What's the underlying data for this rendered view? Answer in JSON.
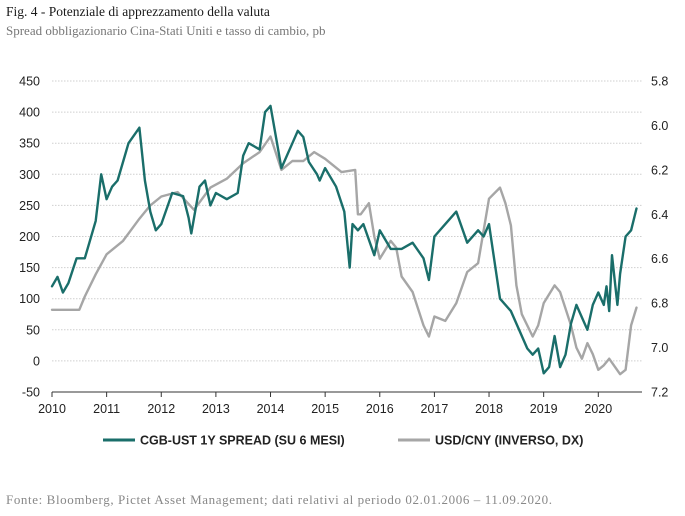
{
  "header": {
    "title": "Fig. 4 - Potenziale di apprezzamento della valuta",
    "subtitle": "Spread obbligazionario Cina-Stati Uniti e tasso di cambio, pb"
  },
  "footer": {
    "source": "Fonte: Bloomberg, Pictet Asset Management; dati relativi al periodo 02.01.2006 – 11.09.2020."
  },
  "colors": {
    "spread": "#1a6e6a",
    "fx": "#a6a6a6",
    "grid": "#cfcfcf"
  },
  "chart_data": {
    "type": "line",
    "xlim": [
      2010,
      2020.8
    ],
    "ylim": [
      -50,
      450
    ],
    "y2lim": [
      5.8,
      7.2
    ],
    "y2_inverted": true,
    "grid": true,
    "legend_position": "bottom",
    "x_ticks": [
      "2010",
      "2011",
      "2012",
      "2013",
      "2014",
      "2015",
      "2016",
      "2017",
      "2018",
      "2019",
      "2020"
    ],
    "y_ticks": [
      "450",
      "400",
      "350",
      "300",
      "250",
      "200",
      "150",
      "100",
      "50",
      "0",
      "-50"
    ],
    "y2_ticks": [
      "5.8",
      "6.0",
      "6.2",
      "6.4",
      "6.6",
      "6.8",
      "7.0",
      "7.2"
    ],
    "series": [
      {
        "name": "CGB-UST 1Y SPREAD (SU 6 MESI)",
        "axis": "left",
        "x": [
          2010.0,
          2010.1,
          2010.2,
          2010.3,
          2010.45,
          2010.6,
          2010.8,
          2010.9,
          2011.0,
          2011.1,
          2011.2,
          2011.4,
          2011.6,
          2011.7,
          2011.8,
          2011.9,
          2012.0,
          2012.2,
          2012.4,
          2012.5,
          2012.55,
          2012.7,
          2012.8,
          2012.9,
          2013.0,
          2013.2,
          2013.4,
          2013.5,
          2013.6,
          2013.8,
          2013.9,
          2014.0,
          2014.2,
          2014.4,
          2014.5,
          2014.6,
          2014.7,
          2014.85,
          2014.9,
          2015.0,
          2015.2,
          2015.35,
          2015.45,
          2015.5,
          2015.6,
          2015.7,
          2015.9,
          2016.0,
          2016.2,
          2016.4,
          2016.6,
          2016.8,
          2016.9,
          2017.0,
          2017.2,
          2017.4,
          2017.6,
          2017.8,
          2017.9,
          2018.0,
          2018.2,
          2018.4,
          2018.5,
          2018.7,
          2018.8,
          2018.9,
          2019.0,
          2019.1,
          2019.2,
          2019.3,
          2019.4,
          2019.5,
          2019.6,
          2019.7,
          2019.8,
          2019.9,
          2020.0,
          2020.1,
          2020.15,
          2020.2,
          2020.25,
          2020.35,
          2020.4,
          2020.5,
          2020.6,
          2020.7
        ],
        "values": [
          120,
          135,
          110,
          125,
          165,
          165,
          225,
          300,
          260,
          280,
          290,
          350,
          375,
          290,
          240,
          210,
          220,
          270,
          265,
          230,
          205,
          280,
          290,
          250,
          270,
          260,
          270,
          330,
          350,
          340,
          400,
          410,
          310,
          350,
          370,
          360,
          320,
          300,
          290,
          310,
          280,
          240,
          150,
          220,
          210,
          220,
          170,
          210,
          180,
          180,
          190,
          165,
          130,
          200,
          220,
          240,
          190,
          210,
          200,
          220,
          100,
          80,
          60,
          20,
          10,
          20,
          -20,
          -10,
          40,
          -10,
          10,
          60,
          90,
          70,
          50,
          90,
          110,
          90,
          120,
          80,
          170,
          90,
          140,
          200,
          210,
          245
        ]
      },
      {
        "name": "USD/CNY (INVERSO, DX)",
        "axis": "right",
        "x": [
          2010.0,
          2010.3,
          2010.5,
          2010.6,
          2010.8,
          2011.0,
          2011.3,
          2011.6,
          2011.8,
          2012.0,
          2012.3,
          2012.6,
          2012.9,
          2013.2,
          2013.5,
          2013.8,
          2014.0,
          2014.2,
          2014.4,
          2014.6,
          2014.8,
          2015.0,
          2015.3,
          2015.55,
          2015.6,
          2015.65,
          2015.8,
          2015.9,
          2016.0,
          2016.2,
          2016.3,
          2016.4,
          2016.6,
          2016.8,
          2016.9,
          2017.0,
          2017.2,
          2017.4,
          2017.6,
          2017.8,
          2018.0,
          2018.2,
          2018.3,
          2018.4,
          2018.5,
          2018.6,
          2018.8,
          2018.9,
          2019.0,
          2019.2,
          2019.3,
          2019.5,
          2019.6,
          2019.7,
          2019.8,
          2019.9,
          2020.0,
          2020.1,
          2020.2,
          2020.4,
          2020.5,
          2020.6,
          2020.7
        ],
        "values": [
          6.83,
          6.83,
          6.83,
          6.77,
          6.67,
          6.58,
          6.52,
          6.42,
          6.36,
          6.32,
          6.3,
          6.38,
          6.28,
          6.24,
          6.17,
          6.12,
          6.05,
          6.2,
          6.16,
          6.16,
          6.12,
          6.15,
          6.21,
          6.2,
          6.4,
          6.4,
          6.35,
          6.5,
          6.6,
          6.52,
          6.55,
          6.68,
          6.75,
          6.9,
          6.95,
          6.86,
          6.88,
          6.8,
          6.66,
          6.62,
          6.33,
          6.28,
          6.35,
          6.45,
          6.72,
          6.85,
          6.95,
          6.9,
          6.8,
          6.72,
          6.75,
          6.9,
          7.0,
          7.05,
          6.98,
          7.03,
          7.1,
          7.08,
          7.05,
          7.12,
          7.1,
          6.9,
          6.82
        ]
      }
    ]
  }
}
